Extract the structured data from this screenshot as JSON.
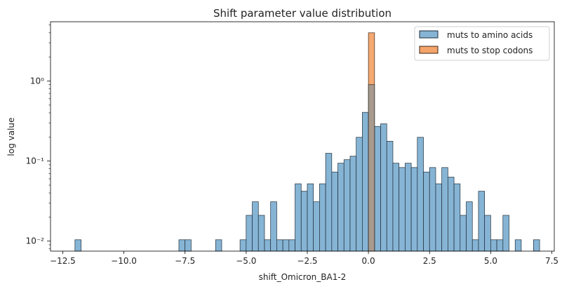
{
  "chart_data": {
    "type": "bar",
    "title": "Shift parameter value distribution",
    "xlabel": "shift_Omicron_BA1-2",
    "ylabel": "log value",
    "yscale": "log",
    "xlim": [
      -13.0,
      7.6
    ],
    "ylim": [
      0.0075,
      5.5
    ],
    "xticks": [
      -12.5,
      -10.0,
      -7.5,
      -5.0,
      -2.5,
      0.0,
      2.5,
      5.0,
      7.5
    ],
    "xtick_labels": [
      "−12.5",
      "−10.0",
      "−7.5",
      "−5.0",
      "−2.5",
      "0.0",
      "2.5",
      "5.0",
      "7.5"
    ],
    "yticks": [
      0.01,
      0.1,
      1
    ],
    "ytick_labels": [
      "10⁻²",
      "10⁻¹",
      "10⁰"
    ],
    "bin_width": 0.25,
    "grid": false,
    "legend_position": "top-right",
    "series": [
      {
        "name": "muts to amino acids",
        "color": "#86b4d4",
        "edge": "#1f2d3a",
        "bins": [
          {
            "x": -12.0,
            "y": 0.0104
          },
          {
            "x": -7.75,
            "y": 0.0104
          },
          {
            "x": -7.5,
            "y": 0.0104
          },
          {
            "x": -6.25,
            "y": 0.0104
          },
          {
            "x": -5.25,
            "y": 0.0104
          },
          {
            "x": -5.0,
            "y": 0.021
          },
          {
            "x": -4.75,
            "y": 0.031
          },
          {
            "x": -4.5,
            "y": 0.021
          },
          {
            "x": -4.25,
            "y": 0.0104
          },
          {
            "x": -4.0,
            "y": 0.031
          },
          {
            "x": -3.75,
            "y": 0.0104
          },
          {
            "x": -3.5,
            "y": 0.0104
          },
          {
            "x": -3.25,
            "y": 0.0104
          },
          {
            "x": -3.0,
            "y": 0.052
          },
          {
            "x": -2.75,
            "y": 0.042
          },
          {
            "x": -2.5,
            "y": 0.052
          },
          {
            "x": -2.25,
            "y": 0.031
          },
          {
            "x": -2.0,
            "y": 0.052
          },
          {
            "x": -1.75,
            "y": 0.125
          },
          {
            "x": -1.5,
            "y": 0.073
          },
          {
            "x": -1.25,
            "y": 0.094
          },
          {
            "x": -1.0,
            "y": 0.104
          },
          {
            "x": -0.75,
            "y": 0.115
          },
          {
            "x": -0.5,
            "y": 0.198
          },
          {
            "x": -0.25,
            "y": 0.406
          },
          {
            "x": 0.0,
            "y": 0.198
          },
          {
            "x": 0.25,
            "y": 0.271
          },
          {
            "x": 0.5,
            "y": 0.292
          },
          {
            "x": 0.75,
            "y": 0.177
          },
          {
            "x": 1.0,
            "y": 0.094
          },
          {
            "x": 1.25,
            "y": 0.083
          },
          {
            "x": 1.5,
            "y": 0.094
          },
          {
            "x": 1.75,
            "y": 0.083
          },
          {
            "x": 2.0,
            "y": 0.198
          },
          {
            "x": 2.25,
            "y": 0.073
          },
          {
            "x": 2.5,
            "y": 0.083
          },
          {
            "x": 2.75,
            "y": 0.052
          },
          {
            "x": 3.0,
            "y": 0.083
          },
          {
            "x": 3.25,
            "y": 0.063
          },
          {
            "x": 3.5,
            "y": 0.052
          },
          {
            "x": 3.75,
            "y": 0.021
          },
          {
            "x": 4.0,
            "y": 0.031
          },
          {
            "x": 4.25,
            "y": 0.0104
          },
          {
            "x": 4.5,
            "y": 0.042
          },
          {
            "x": 4.75,
            "y": 0.021
          },
          {
            "x": 5.0,
            "y": 0.0104
          },
          {
            "x": 5.25,
            "y": 0.0104
          },
          {
            "x": 5.5,
            "y": 0.021
          },
          {
            "x": 6.0,
            "y": 0.0104
          },
          {
            "x": 6.75,
            "y": 0.0104
          }
        ]
      },
      {
        "name": "muts to stop codons",
        "color": "#f4a46a",
        "edge": "#3a2416",
        "bins": [
          {
            "x": 0.0,
            "y": 4.0
          }
        ]
      }
    ],
    "overlap": {
      "x": 0.0,
      "y": 0.9,
      "color": "#a89a8e"
    }
  }
}
